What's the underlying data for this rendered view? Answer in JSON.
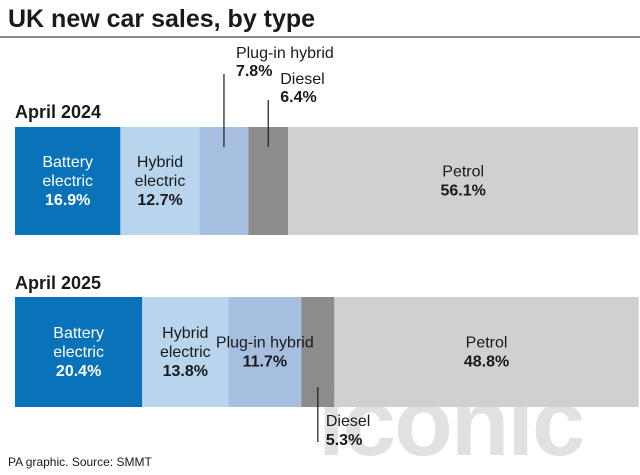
{
  "title": "UK new car sales, by type",
  "source": "PA graphic. Source: SMMT",
  "watermark": "iconic",
  "colors": {
    "battery_electric": "#0a72b8",
    "hybrid_electric": "#b9d5ee",
    "plug_in_hybrid": "#a6bfe0",
    "diesel": "#8c8c8c",
    "petrol": "#d0d0d0",
    "rule": "#1a1a1a"
  },
  "chart_data": {
    "type": "bar",
    "stacked": true,
    "orientation": "horizontal",
    "title": "UK new car sales, by type",
    "unit": "%",
    "categories": [
      "April 2024",
      "April 2025"
    ],
    "series": [
      {
        "name": "Battery electric",
        "label_lines": [
          "Battery",
          "electric"
        ],
        "values": [
          16.9,
          20.4
        ],
        "value_labels": [
          "16.9%",
          "20.4%"
        ]
      },
      {
        "name": "Hybrid electric",
        "label_lines": [
          "Hybrid",
          "electric"
        ],
        "values": [
          12.7,
          13.8
        ],
        "value_labels": [
          "12.7%",
          "13.8%"
        ]
      },
      {
        "name": "Plug-in hybrid",
        "label_lines": [
          "Plug-in hybrid"
        ],
        "values": [
          7.8,
          11.7
        ],
        "value_labels": [
          "7.8%",
          "11.7%"
        ]
      },
      {
        "name": "Diesel",
        "label_lines": [
          "Diesel"
        ],
        "values": [
          6.4,
          5.3
        ],
        "value_labels": [
          "6.4%",
          "5.3%"
        ]
      },
      {
        "name": "Petrol",
        "label_lines": [
          "Petrol"
        ],
        "values": [
          56.1,
          48.8
        ],
        "value_labels": [
          "56.1%",
          "48.8%"
        ]
      }
    ],
    "xlim": [
      0,
      100.2
    ]
  }
}
